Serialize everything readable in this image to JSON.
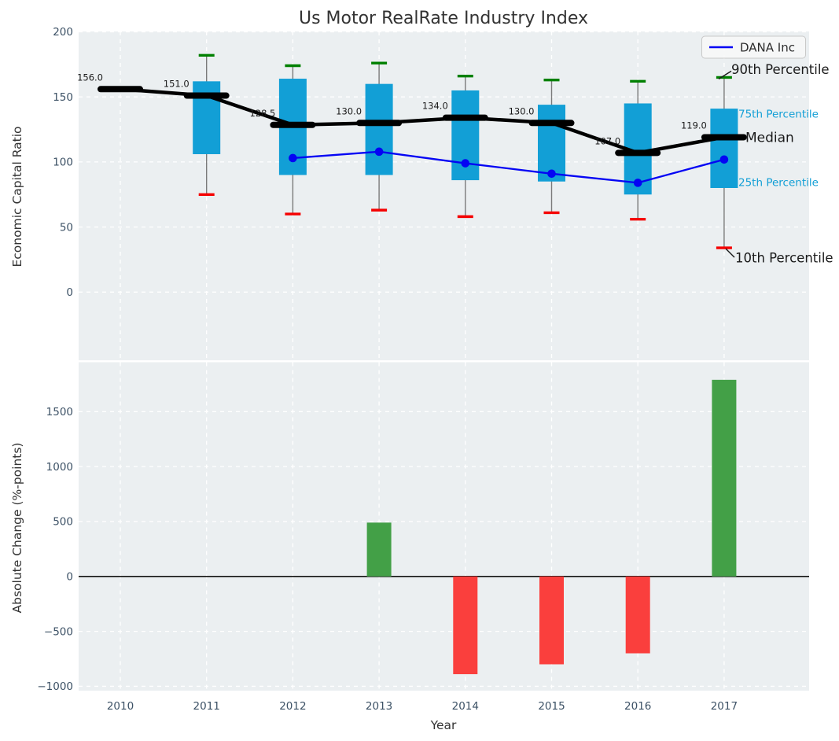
{
  "figure": {
    "title": "Us Motor RealRate Industry Index",
    "x_axis_label": "Year"
  },
  "colors": {
    "panel_background": "#ebeff1",
    "grid": "#ffffff",
    "box_fill": "#129fd6",
    "whisker": "#7a7a7a",
    "cap_90th": "#008000",
    "cap_10th": "#f50000",
    "median_line": "#000000",
    "company_line": "#0404f4",
    "bar_positive": "#43a047",
    "bar_negative": "#fa3f3d",
    "tick_text": "#3c5165",
    "label_text": "#333333",
    "annotation_dark": "#1a1a1a",
    "annotation_blue": "#129fd6",
    "legend_background": "#f7f7f7",
    "legend_border": "#c8c8c8",
    "zero_line": "#141414"
  },
  "chart_data": [
    {
      "type": "box-percentile-timeseries",
      "title": "Us Motor RealRate Industry Index",
      "ylabel": "Economic Capital Ratio",
      "ylim": [
        -52.4,
        200.3
      ],
      "yticks": [
        0,
        50,
        100,
        150,
        200
      ],
      "grid": true,
      "legend_position": "upper right",
      "categories": [
        "2010",
        "2011",
        "2012",
        "2013",
        "2014",
        "2015",
        "2016",
        "2017"
      ],
      "series": {
        "median": {
          "name": "Median",
          "values": [
            156,
            151,
            128.5,
            130,
            134,
            130,
            107,
            119
          ],
          "point_labels": [
            "156.0",
            "151.0",
            "128.5",
            "130.0",
            "134.0",
            "130.0",
            "107.0",
            "119.0"
          ]
        },
        "p90": {
          "name": "90th Percentile",
          "values": [
            null,
            182,
            174,
            176,
            166,
            163,
            162,
            165
          ]
        },
        "p75": {
          "name": "75th Percentile",
          "values": [
            null,
            162,
            164,
            160,
            155,
            144,
            145,
            141
          ]
        },
        "p25": {
          "name": "25th Percentile",
          "values": [
            null,
            106,
            90,
            90,
            86,
            85,
            75,
            80
          ]
        },
        "p10": {
          "name": "10th Percentile",
          "values": [
            null,
            75,
            60,
            63,
            58,
            61,
            56,
            34
          ]
        },
        "company": {
          "name": "DANA Inc",
          "values": [
            null,
            null,
            103,
            107.9,
            99,
            91,
            84,
            101.9
          ]
        }
      },
      "annotations": [
        {
          "label": "90th Percentile",
          "series": "p90"
        },
        {
          "label": "75th Percentile",
          "series": "p75"
        },
        {
          "label": "Median",
          "series": "median"
        },
        {
          "label": "25th Percentile",
          "series": "p25"
        },
        {
          "label": "10th Percentile",
          "series": "p10"
        }
      ],
      "legend": {
        "entries": [
          {
            "label": "DANA Inc"
          }
        ]
      }
    },
    {
      "type": "bar",
      "ylabel": "Absolute Change (%-points)",
      "xlabel": "Year",
      "ylim": [
        -1040,
        1950
      ],
      "yticks": [
        -1000,
        -500,
        0,
        500,
        1000,
        1500
      ],
      "grid": true,
      "categories": [
        "2010",
        "2011",
        "2012",
        "2013",
        "2014",
        "2015",
        "2016",
        "2017"
      ],
      "values": [
        null,
        null,
        null,
        490,
        -890,
        -800,
        -700,
        1790
      ]
    }
  ]
}
